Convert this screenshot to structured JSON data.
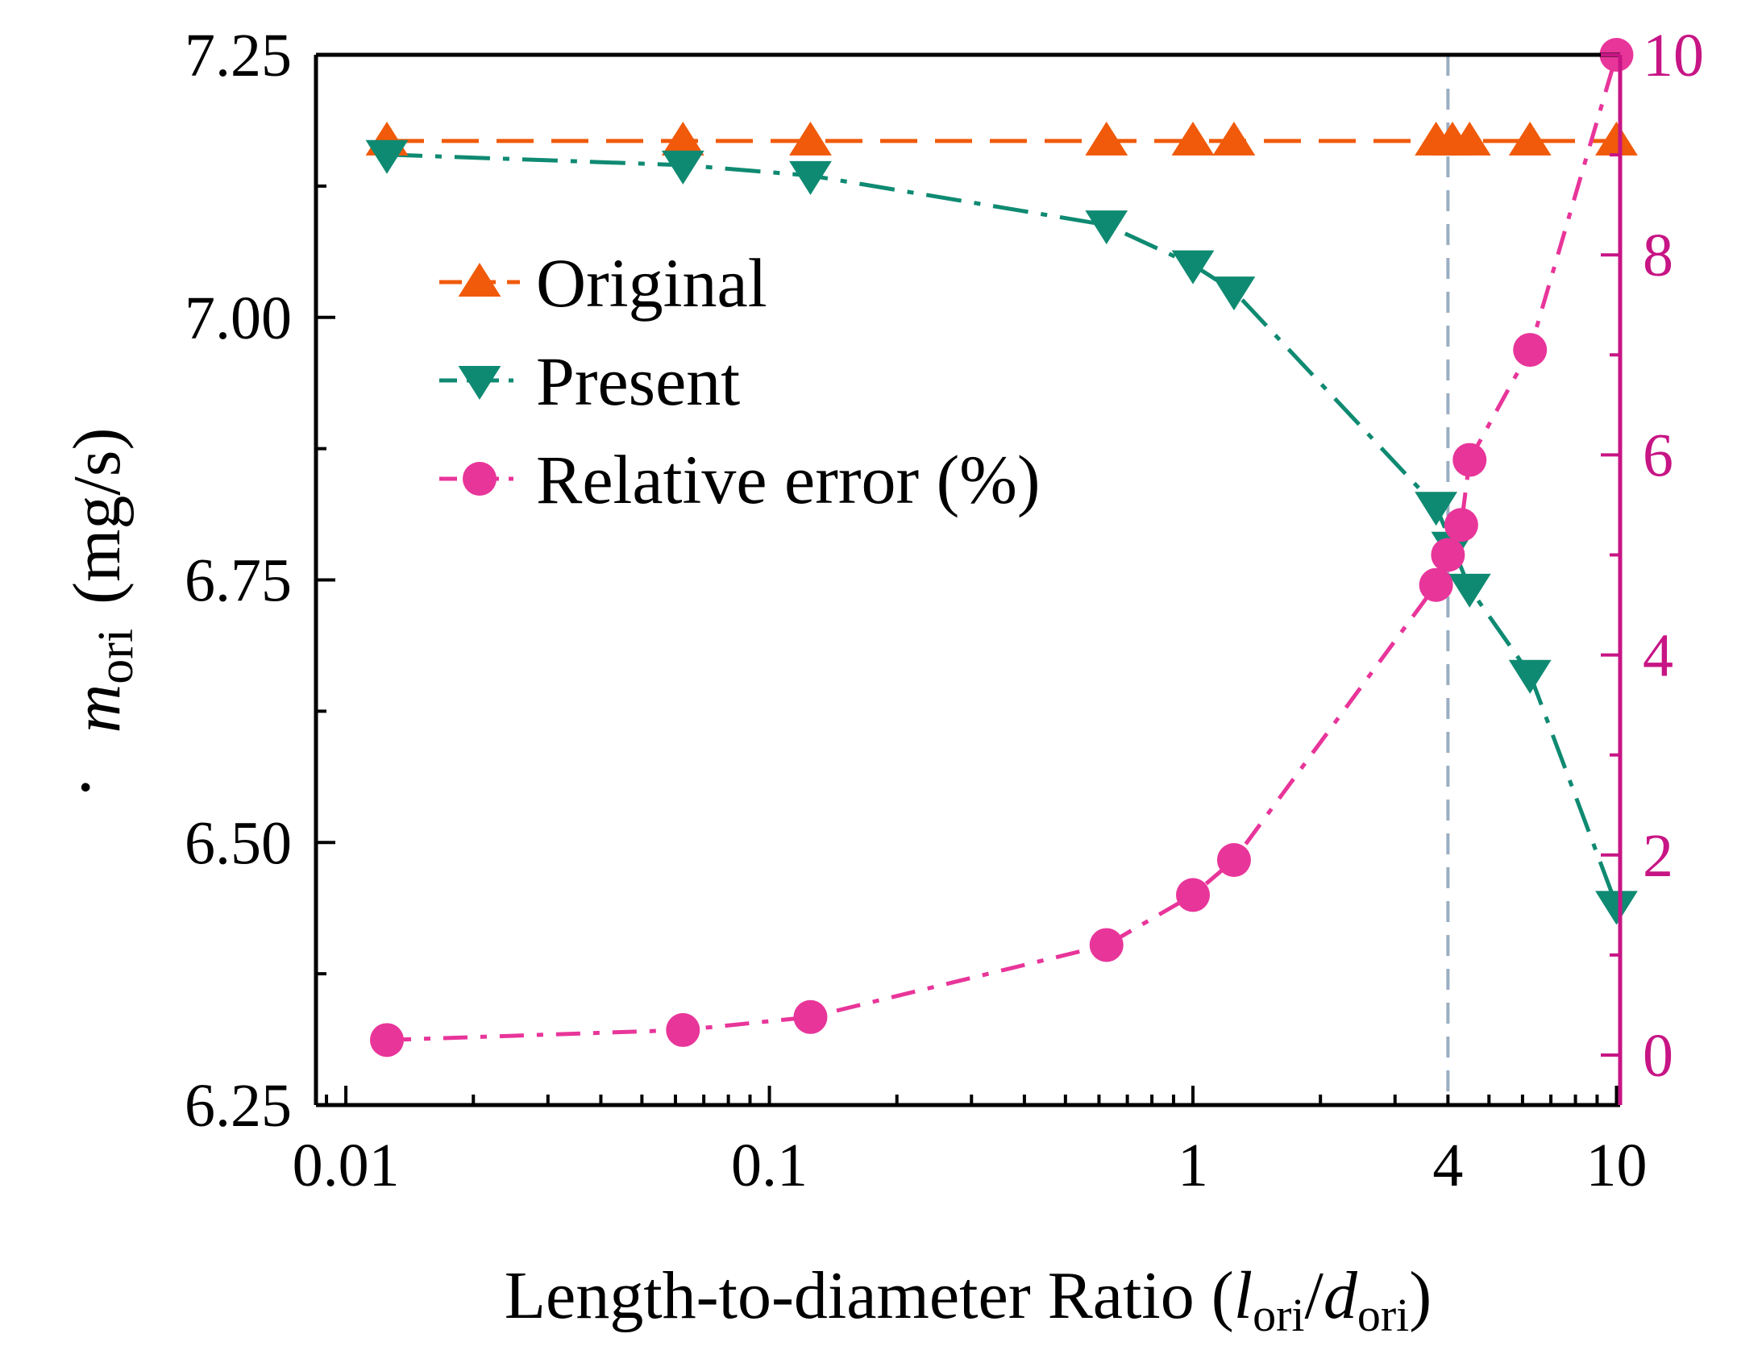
{
  "chart_data": {
    "type": "line",
    "xscale": "log",
    "xlim": [
      0.0085,
      10.2
    ],
    "ylim": [
      6.25,
      7.25
    ],
    "y2lim": [
      -0.5,
      10
    ],
    "xticks": [
      {
        "value": 0.01,
        "label": "0.01"
      },
      {
        "value": 0.1,
        "label": "0.1"
      },
      {
        "value": 1,
        "label": "1"
      },
      {
        "value": 4,
        "label": "4"
      },
      {
        "value": 10,
        "label": "10"
      }
    ],
    "yticks": [
      {
        "value": 6.25,
        "label": "6.25"
      },
      {
        "value": 6.5,
        "label": "6.50"
      },
      {
        "value": 6.75,
        "label": "6.75"
      },
      {
        "value": 7.0,
        "label": "7.00"
      },
      {
        "value": 7.25,
        "label": "7.25"
      }
    ],
    "y2ticks": [
      {
        "value": 0,
        "label": "0"
      },
      {
        "value": 2,
        "label": "2"
      },
      {
        "value": 4,
        "label": "4"
      },
      {
        "value": 6,
        "label": "6"
      },
      {
        "value": 8,
        "label": "8"
      },
      {
        "value": 10,
        "label": "10"
      }
    ],
    "xlabel": {
      "main": "Length-to-diameter Ratio (",
      "l": "l",
      "sub1": "ori",
      "slash": "/",
      "d": "d",
      "sub2": "ori",
      "close": ")"
    },
    "ylabel": {
      "m": "m",
      "sub": "ori",
      "unit": "(mg/s)"
    },
    "vline_x": 4,
    "series": [
      {
        "name": "Original",
        "axis": "left",
        "marker": "triangle-up",
        "color": "#f05a0a",
        "x": [
          0.0125,
          0.0625,
          0.125,
          0.625,
          1.0,
          1.25,
          3.75,
          4.1,
          4.5,
          6.25,
          10.0
        ],
        "y": [
          7.168,
          7.168,
          7.168,
          7.168,
          7.168,
          7.168,
          7.168,
          7.168,
          7.168,
          7.168,
          7.168
        ]
      },
      {
        "name": "Present",
        "axis": "left",
        "marker": "triangle-down",
        "color": "#0f8a72",
        "x": [
          0.0125,
          0.0625,
          0.125,
          0.625,
          1.0,
          1.25,
          3.75,
          4.1,
          4.5,
          6.25,
          10.0
        ],
        "y": [
          7.155,
          7.145,
          7.135,
          7.088,
          7.05,
          7.025,
          6.82,
          6.782,
          6.742,
          6.66,
          6.44
        ]
      },
      {
        "name": "Relative error (%)",
        "axis": "right",
        "marker": "circle",
        "color": "#e8359a",
        "x": [
          0.0125,
          0.0625,
          0.125,
          0.625,
          1.0,
          1.25,
          3.75,
          4.0,
          4.3,
          4.5,
          6.25,
          10.0
        ],
        "y": [
          0.15,
          0.25,
          0.38,
          1.1,
          1.6,
          1.95,
          4.7,
          5.0,
          5.3,
          5.95,
          7.05,
          10.0
        ]
      }
    ]
  },
  "colors": {
    "right_axis": "#c71585",
    "vline": "#9aaec2"
  }
}
